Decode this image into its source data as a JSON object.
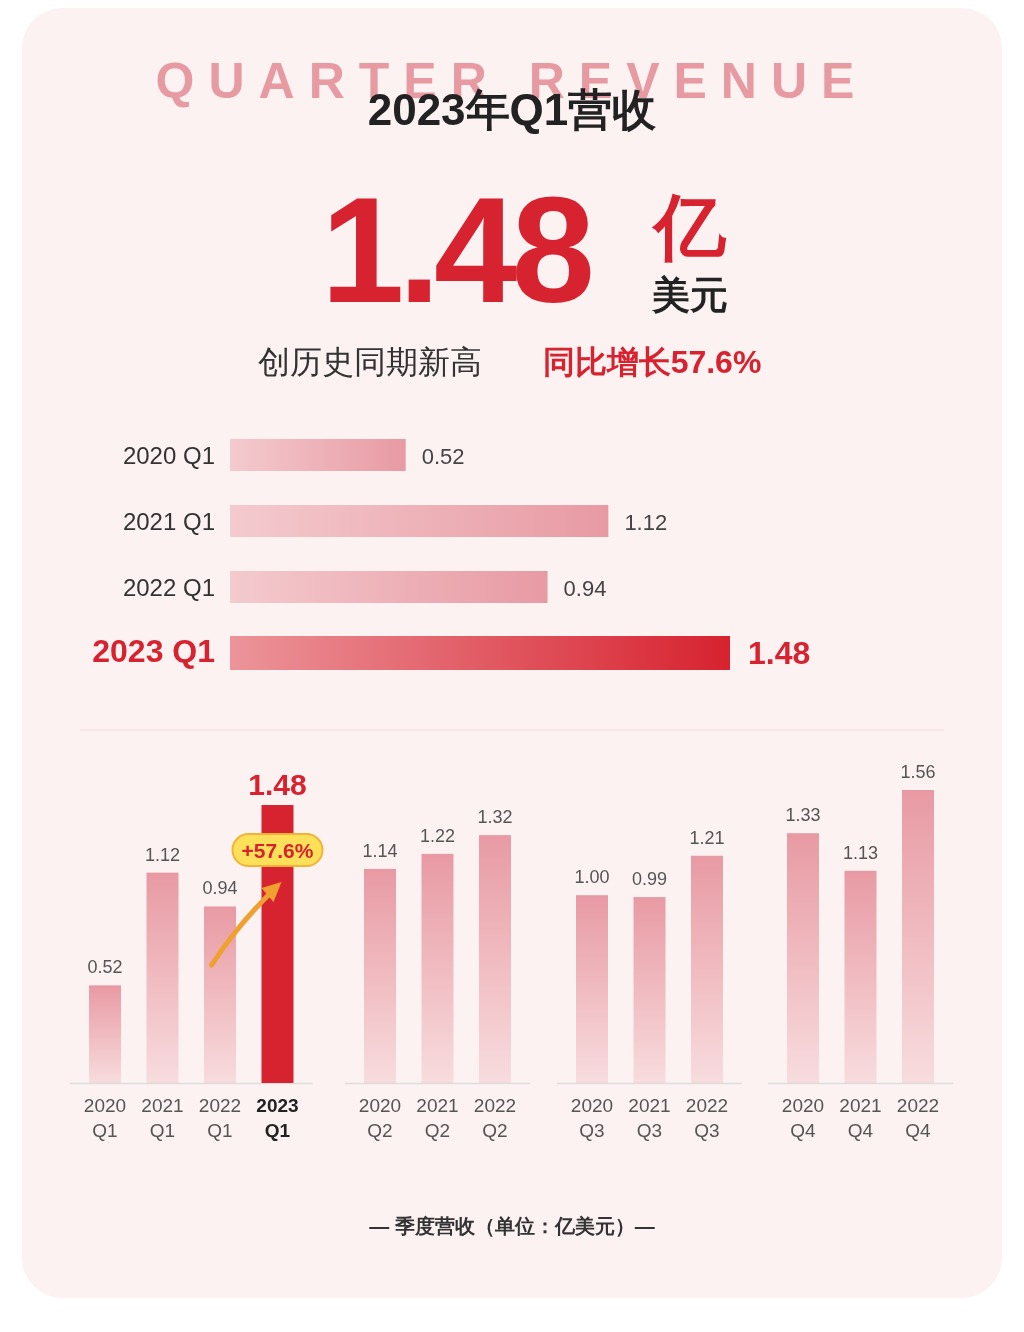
{
  "chart_data": [
    {
      "type": "bar",
      "orientation": "horizontal",
      "title": "2023年Q1营收",
      "categories": [
        "2020 Q1",
        "2021 Q1",
        "2022 Q1",
        "2023 Q1"
      ],
      "values": [
        0.52,
        1.12,
        0.94,
        1.48
      ],
      "colors": [
        "#e89aa3",
        "#e89aa3",
        "#e89aa3",
        "#d7222f"
      ],
      "data_labels": true,
      "annotations": [
        "QUARTER REVENUE",
        "1.48",
        "亿",
        "美元",
        "创历史同期新高",
        "同比增长57.6%"
      ]
    },
    {
      "type": "bar",
      "categories": [
        "2020 Q1",
        "2021 Q1",
        "2022 Q1",
        "2023 Q1"
      ],
      "values": [
        0.52,
        1.12,
        0.94,
        1.48
      ],
      "colors": [
        "#e89aa3",
        "#e89aa3",
        "#e89aa3",
        "#d7222f"
      ],
      "value_labels": [
        "0.52",
        "1.12",
        "0.94",
        "1.48"
      ],
      "annotations": [
        "+57.6%",
        "— 季度营收（单位：亿美元）—"
      ]
    },
    {
      "type": "bar",
      "categories": [
        "2020 Q2",
        "2021 Q2",
        "2022 Q2"
      ],
      "values": [
        1.14,
        1.22,
        1.32
      ],
      "colors": [
        "#e89aa3",
        "#e89aa3",
        "#e89aa3"
      ],
      "value_labels": [
        "1.14",
        "1.22",
        "1.32"
      ]
    },
    {
      "type": "bar",
      "categories": [
        "2020 Q3",
        "2021 Q3",
        "2022 Q3"
      ],
      "values": [
        1.0,
        0.99,
        1.21
      ],
      "colors": [
        "#e89aa3",
        "#e89aa3",
        "#e89aa3"
      ],
      "value_labels": [
        "1.00",
        "0.99",
        "1.21"
      ]
    },
    {
      "type": "bar",
      "categories": [
        "2020 Q4",
        "2021 Q4",
        "2022 Q4"
      ],
      "values": [
        1.33,
        1.13,
        1.56
      ],
      "colors": [
        "#e89aa3",
        "#e89aa3",
        "#e89aa3"
      ],
      "value_labels": [
        "1.33",
        "1.13",
        "1.56"
      ]
    }
  ]
}
